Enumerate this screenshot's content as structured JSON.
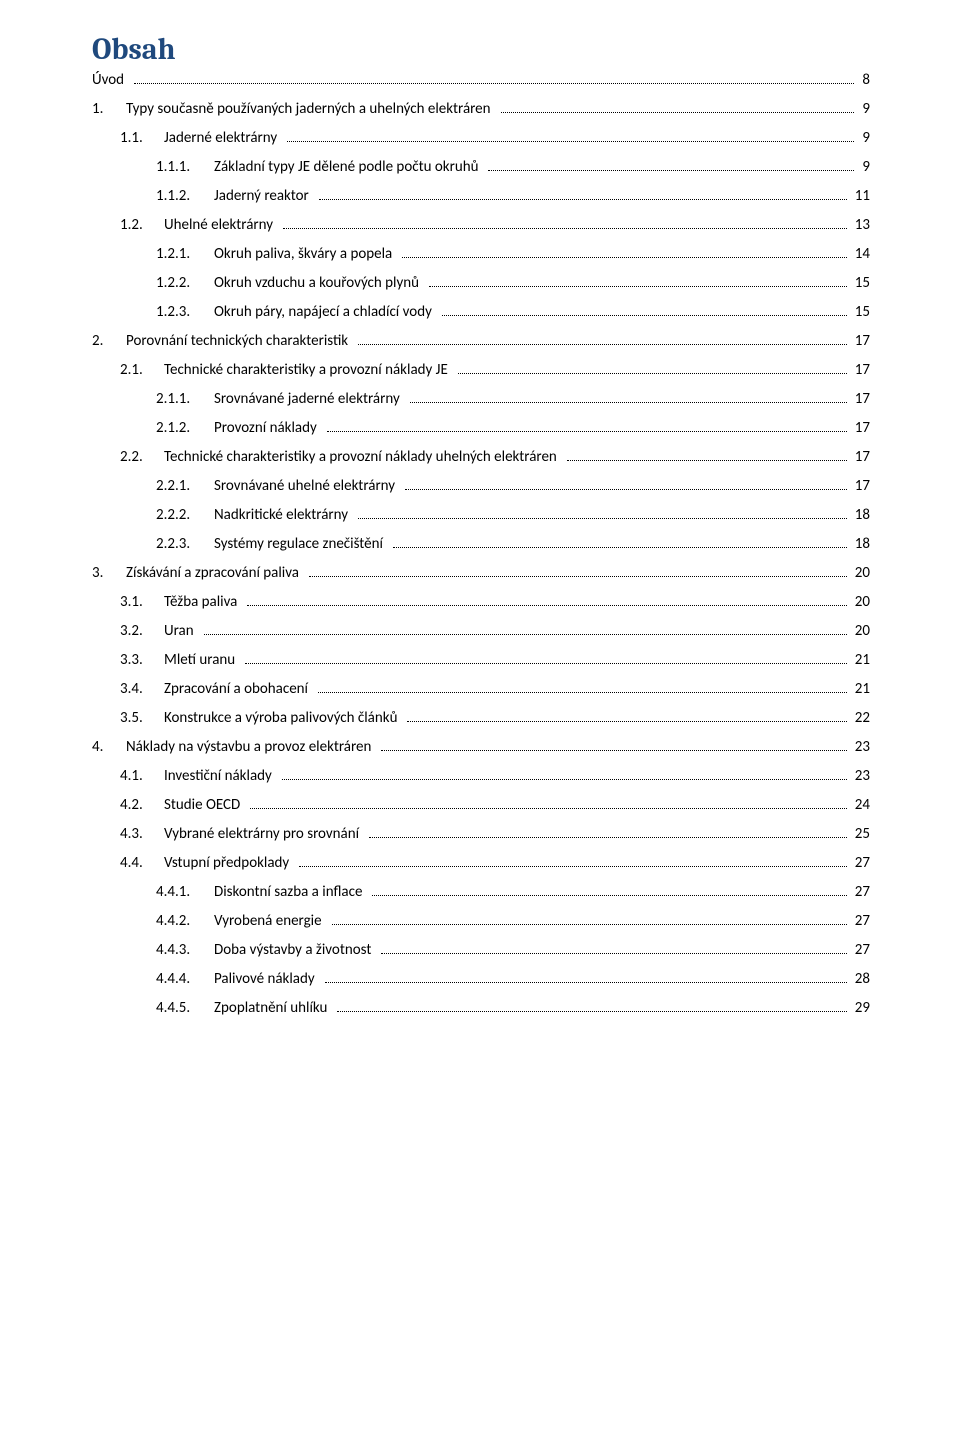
{
  "title": "Obsah",
  "colors": {
    "heading": "#1f497d",
    "text": "#000000",
    "background": "#ffffff"
  },
  "typography": {
    "heading_family": "Cambria",
    "body_family": "Calibri",
    "heading_size_pt": 22,
    "body_size_pt": 11
  },
  "entries": [
    {
      "level": 0,
      "num": "",
      "text": "Úvod",
      "page": "8"
    },
    {
      "level": 1,
      "num": "1.",
      "text": "Typy současně používaných jaderných a uhelných elektráren",
      "page": "9"
    },
    {
      "level": 2,
      "num": "1.1.",
      "text": "Jaderné elektrárny",
      "page": "9"
    },
    {
      "level": 3,
      "num": "1.1.1.",
      "text": "Základní typy JE dělené podle počtu okruhů",
      "page": "9"
    },
    {
      "level": 3,
      "num": "1.1.2.",
      "text": "Jaderný reaktor",
      "page": "11"
    },
    {
      "level": 2,
      "num": "1.2.",
      "text": "Uhelné elektrárny",
      "page": "13"
    },
    {
      "level": 3,
      "num": "1.2.1.",
      "text": "Okruh paliva, škváry a popela",
      "page": "14"
    },
    {
      "level": 3,
      "num": "1.2.2.",
      "text": "Okruh vzduchu a kouřových plynů",
      "page": "15"
    },
    {
      "level": 3,
      "num": "1.2.3.",
      "text": "Okruh páry, napájecí a chladící vody",
      "page": "15"
    },
    {
      "level": 1,
      "num": "2.",
      "text": "Porovnání technických charakteristik",
      "page": "17"
    },
    {
      "level": 2,
      "num": "2.1.",
      "text": "Technické charakteristiky a provozní náklady JE",
      "page": "17"
    },
    {
      "level": 3,
      "num": "2.1.1.",
      "text": "Srovnávané jaderné elektrárny",
      "page": "17"
    },
    {
      "level": 3,
      "num": "2.1.2.",
      "text": "Provozní náklady",
      "page": "17"
    },
    {
      "level": 2,
      "num": "2.2.",
      "text": "Technické charakteristiky a provozní náklady uhelných elektráren",
      "page": "17"
    },
    {
      "level": 3,
      "num": "2.2.1.",
      "text": "Srovnávané uhelné elektrárny",
      "page": "17"
    },
    {
      "level": 3,
      "num": "2.2.2.",
      "text": "Nadkritické elektrárny",
      "page": "18"
    },
    {
      "level": 3,
      "num": "2.2.3.",
      "text": "Systémy regulace znečištění",
      "page": "18"
    },
    {
      "level": 1,
      "num": "3.",
      "text": "Získávání a zpracování paliva",
      "page": "20"
    },
    {
      "level": 2,
      "num": "3.1.",
      "text": "Těžba paliva",
      "page": "20"
    },
    {
      "level": 2,
      "num": "3.2.",
      "text": "Uran",
      "page": "20"
    },
    {
      "level": 2,
      "num": "3.3.",
      "text": "Mletí uranu",
      "page": "21"
    },
    {
      "level": 2,
      "num": "3.4.",
      "text": "Zpracování a obohacení",
      "page": "21"
    },
    {
      "level": 2,
      "num": "3.5.",
      "text": "Konstrukce a výroba palivových článků",
      "page": "22"
    },
    {
      "level": 1,
      "num": "4.",
      "text": "Náklady na výstavbu a provoz elektráren",
      "page": "23"
    },
    {
      "level": 2,
      "num": "4.1.",
      "text": "Investiční náklady",
      "page": "23"
    },
    {
      "level": 2,
      "num": "4.2.",
      "text": "Studie OECD",
      "page": "24"
    },
    {
      "level": 2,
      "num": "4.3.",
      "text": "Vybrané elektrárny pro srovnání",
      "page": "25"
    },
    {
      "level": 2,
      "num": "4.4.",
      "text": "Vstupní předpoklady",
      "page": "27"
    },
    {
      "level": 3,
      "num": "4.4.1.",
      "text": "Diskontní sazba a inflace",
      "page": "27"
    },
    {
      "level": 3,
      "num": "4.4.2.",
      "text": "Vyrobená energie",
      "page": "27"
    },
    {
      "level": 3,
      "num": "4.4.3.",
      "text": "Doba výstavby a životnost",
      "page": "27"
    },
    {
      "level": 3,
      "num": "4.4.4.",
      "text": "Palivové náklady",
      "page": "28"
    },
    {
      "level": 3,
      "num": "4.4.5.",
      "text": "Zpoplatnění uhlíku",
      "page": "29"
    }
  ]
}
